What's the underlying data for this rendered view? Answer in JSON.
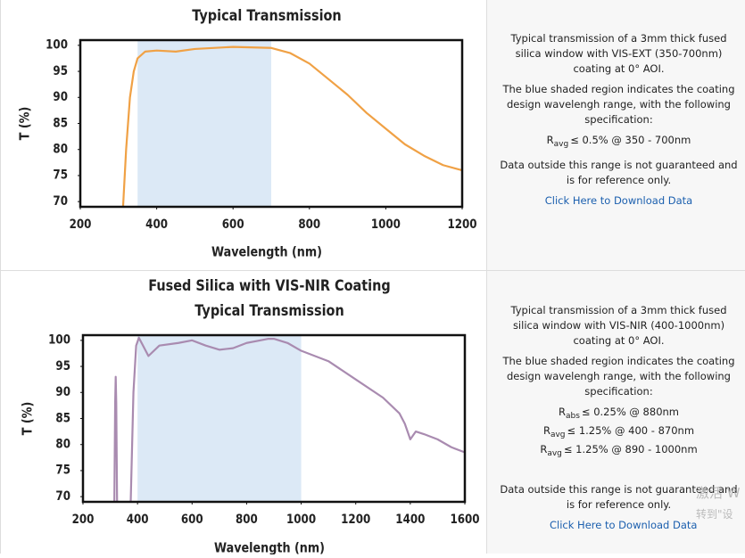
{
  "chart_data": [
    {
      "type": "line",
      "title": [
        "Typical Transmission"
      ],
      "xlabel": "Wavelength (nm)",
      "ylabel": "T (%)",
      "x": [
        312,
        320,
        330,
        340,
        350,
        370,
        400,
        450,
        500,
        600,
        700,
        750,
        800,
        850,
        900,
        950,
        1000,
        1050,
        1100,
        1150,
        1200
      ],
      "series": [
        {
          "color": "#f0a145",
          "values": [
            69,
            80,
            90,
            95,
            97.5,
            98.8,
            99,
            98.8,
            99.3,
            99.7,
            99.5,
            98.5,
            96.5,
            93.5,
            90.5,
            87,
            84,
            81,
            78.8,
            77,
            76
          ]
        }
      ],
      "shade": {
        "x": [
          350,
          700
        ],
        "color": "#dce9f6"
      },
      "xlim": [
        200,
        1200
      ],
      "ylim": [
        69,
        101
      ],
      "xticks": [
        200,
        400,
        600,
        800,
        1000,
        1200
      ],
      "yticks": [
        70,
        75,
        80,
        85,
        90,
        95,
        100
      ]
    },
    {
      "type": "line",
      "title": [
        "Fused Silica with VIS-NIR Coating",
        "Typical Transmission"
      ],
      "xlabel": "Wavelength (nm)",
      "ylabel": "T (%)",
      "x": [
        315,
        318,
        320,
        322,
        325,
        350,
        375,
        385,
        395,
        405,
        440,
        480,
        550,
        600,
        650,
        700,
        750,
        800,
        880,
        900,
        950,
        1000,
        1100,
        1200,
        1300,
        1360,
        1380,
        1400,
        1420,
        1450,
        1500,
        1550,
        1600
      ],
      "series": [
        {
          "color": "#a98bb0",
          "values": [
            69,
            88,
            93,
            88,
            69,
            null,
            69,
            90,
            99,
            100.5,
            97,
            99,
            99.5,
            100,
            99,
            98.2,
            98.5,
            99.5,
            100.3,
            100.3,
            99.5,
            98,
            96,
            92.5,
            89,
            86,
            84,
            81,
            82.5,
            82,
            81,
            79.5,
            78.5
          ]
        }
      ],
      "shade": {
        "x": [
          400,
          1000
        ],
        "color": "#dce9f6"
      },
      "xlim": [
        200,
        1600
      ],
      "ylim": [
        69,
        101
      ],
      "xticks": [
        200,
        400,
        600,
        800,
        1000,
        1200,
        1400,
        1600
      ],
      "yticks": [
        70,
        75,
        80,
        85,
        90,
        95,
        100
      ]
    }
  ],
  "panels": [
    {
      "intro": "Typical transmission of a 3mm thick fused silica window with VIS-EXT (350-700nm) coating at 0° AOI.",
      "shade_note": "The blue shaded region indicates the coating design wavelengh range, with the following specification:",
      "specs": [
        {
          "main": "R",
          "sub": "avg",
          "rest": "≤ 0.5% @ 350 - 700nm"
        }
      ],
      "disclaimer": "Data outside this range is not guaranteed and is for reference only.",
      "link": "Click Here to Download Data"
    },
    {
      "intro": "Typical transmission of a 3mm thick fused silica window with VIS-NIR (400-1000nm) coating at 0° AOI.",
      "shade_note": "The blue shaded region indicates the coating design wavelengh range, with the following specification:",
      "specs": [
        {
          "main": "R",
          "sub": "abs",
          "rest": "≤ 0.25% @ 880nm"
        },
        {
          "main": "R",
          "sub": "avg",
          "rest": "≤ 1.25% @ 400 - 870nm"
        },
        {
          "main": "R",
          "sub": "avg",
          "rest": "≤ 1.25% @ 890 - 1000nm"
        }
      ],
      "disclaimer": "Data outside this range is not guaranteed and is for reference only.",
      "link": "Click Here to Download Data"
    }
  ],
  "watermark": [
    "激活 W",
    "转到\"设"
  ]
}
